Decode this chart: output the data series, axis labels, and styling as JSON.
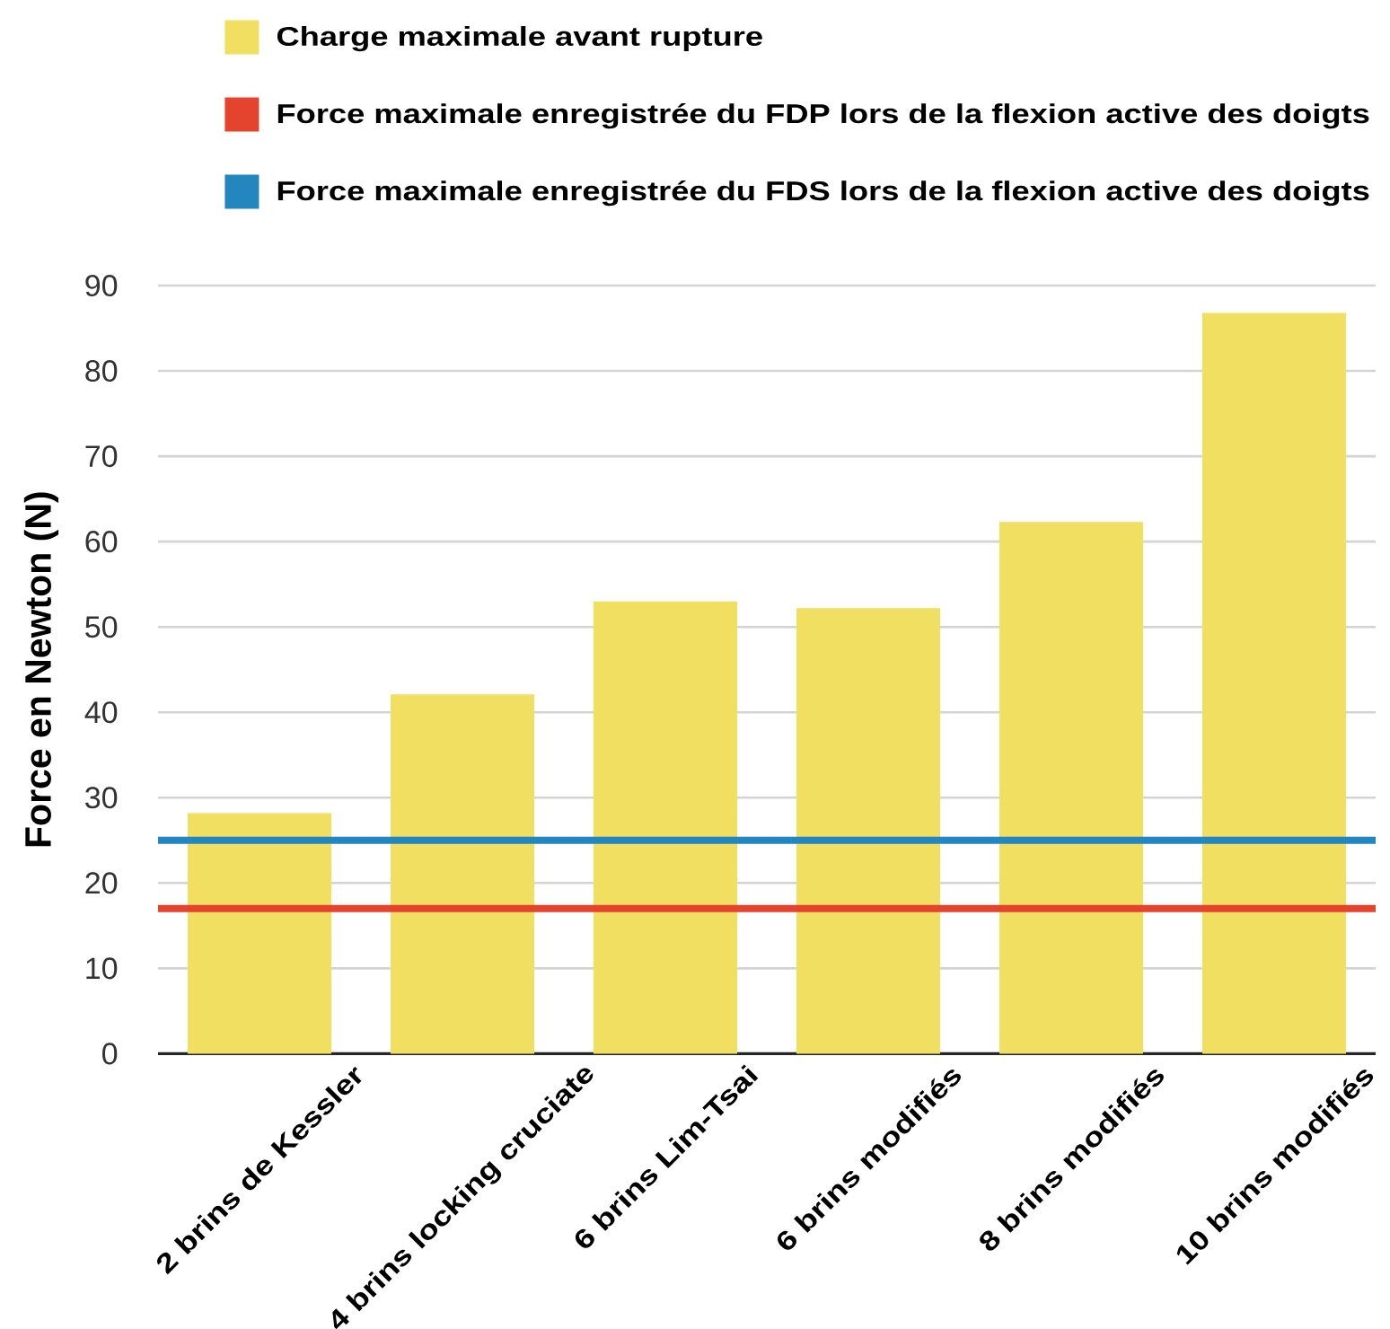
{
  "chart_data": {
    "type": "bar",
    "categories": [
      "2 brins de Kessler",
      "4 brins locking cruciate",
      "6 brins Lim-Tsai",
      "6 brins modifiés",
      "8 brins modifiés",
      "10 brins modifiés"
    ],
    "series": [
      {
        "name": "Charge maximale avant rupture",
        "color": "#f0df60",
        "values": [
          28.2,
          42.1,
          53,
          52.2,
          62.3,
          86.8
        ]
      }
    ],
    "ylabel": "Force en Newton (N)",
    "ylim": [
      0,
      90
    ],
    "yticks": [
      0,
      10,
      20,
      30,
      40,
      50,
      60,
      70,
      80,
      90
    ],
    "ref_lines": [
      {
        "axis": "y",
        "value": 17,
        "label": "Force maximale enregistrée du FDP lors de la flexion active des doigts",
        "color": "#e4432d"
      },
      {
        "axis": "y",
        "value": 25,
        "label": "Force maximale enregistrée du FDS lors de la flexion active des doigts",
        "color": "#2486be"
      }
    ],
    "grid": "y",
    "legend": "top"
  }
}
